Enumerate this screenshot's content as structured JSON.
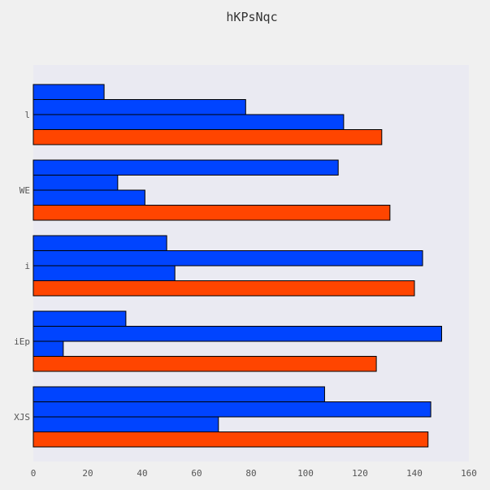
{
  "chart_data": {
    "type": "bar",
    "orientation": "horizontal",
    "title": "hKPsNqc",
    "xlabel": "",
    "ylabel": "",
    "categories": [
      "l",
      "WE",
      "i",
      "iEp",
      "XJS"
    ],
    "series": [
      {
        "color": "#0044ff",
        "values": [
          26,
          112,
          49,
          34,
          107
        ]
      },
      {
        "color": "#0044ff",
        "values": [
          78,
          31,
          143,
          150,
          146
        ]
      },
      {
        "color": "#0044ff",
        "values": [
          114,
          41,
          52,
          11,
          68
        ]
      },
      {
        "color": "#ff4500",
        "values": [
          128,
          131,
          140,
          126,
          145
        ]
      }
    ],
    "xlim": [
      0,
      160
    ],
    "xticks": [
      "0",
      "20",
      "40",
      "60",
      "80",
      "100",
      "120",
      "140",
      "160"
    ],
    "grid": false,
    "legend": "none",
    "background": "#eaeaf2"
  }
}
